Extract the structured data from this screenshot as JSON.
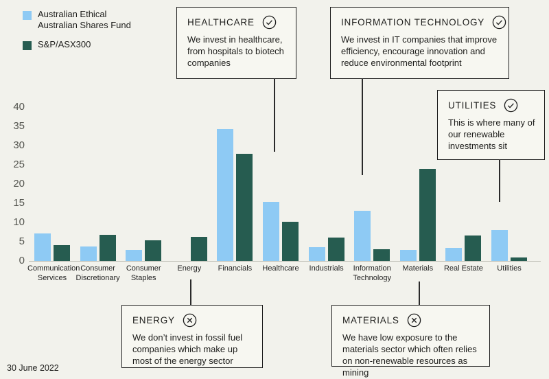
{
  "legend": {
    "items": [
      {
        "label_line1": "Australian Ethical",
        "label_line2": "Australian Shares Fund",
        "color": "#8ecaf4"
      },
      {
        "label_line1": "S&P/ASX300",
        "color": "#265c50"
      }
    ]
  },
  "callouts": [
    {
      "title": "HEALTHCARE",
      "icon": "check-circle",
      "body": "We invest in healthcare, from hospitals to biotech companies"
    },
    {
      "title": "INFORMATION TECHNOLOGY",
      "icon": "check-circle",
      "body": "We invest in IT companies that improve efficiency, encourage innovation and reduce environmental footprint"
    },
    {
      "title": "UTILITIES",
      "icon": "check-circle",
      "body": "This is where many of our renewable investments sit"
    },
    {
      "title": "ENERGY",
      "icon": "x-circle",
      "body": "We don’t invest in fossil fuel companies which make up most of the energy sector"
    },
    {
      "title": "MATERIALS",
      "icon": "x-circle",
      "body": "We have low exposure to the materials sector which often relies on non-renewable resources as mining"
    }
  ],
  "chart_data": {
    "type": "bar",
    "categories": [
      "Communication Services",
      "Consumer Discretionary",
      "Consumer Staples",
      "Energy",
      "Financials",
      "Healthcare",
      "Industrials",
      "Information Technology",
      "Materials",
      "Real Estate",
      "Utilities"
    ],
    "series": [
      {
        "name": "Australian Ethical Australian Shares Fund",
        "color": "#8ecaf4",
        "values": [
          7.1,
          3.8,
          2.8,
          0,
          34.2,
          15.4,
          3.6,
          13.0,
          2.8,
          3.4,
          8.0
        ]
      },
      {
        "name": "S&P/ASX300",
        "color": "#265c50",
        "values": [
          4.1,
          6.8,
          5.3,
          6.3,
          27.8,
          10.2,
          6.0,
          3.0,
          23.9,
          6.6,
          0.9
        ]
      }
    ],
    "title": "",
    "xlabel": "",
    "ylabel": "",
    "ylim": [
      0,
      40
    ],
    "ytick_step": 5,
    "grid": false,
    "legend_position": "top-left"
  },
  "footer": {
    "date_label": "30 June 2022"
  }
}
